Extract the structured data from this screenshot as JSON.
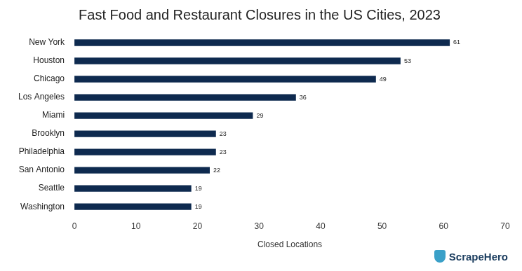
{
  "chart_data": {
    "type": "bar",
    "orientation": "horizontal",
    "title": "Fast Food and Restaurant Closures in the US Cities, 2023",
    "x_label": "Closed Locations",
    "categories": [
      "New York",
      "Houston",
      "Chicago",
      "Los Angeles",
      "Miami",
      "Brooklyn",
      "Philadelphia",
      "San Antonio",
      "Seattle",
      "Washington"
    ],
    "values": [
      61,
      53,
      49,
      36,
      29,
      23,
      23,
      22,
      19,
      19
    ],
    "color": "#0e2a4f",
    "xlim": [
      0,
      70
    ],
    "xticks": [
      0,
      10,
      20,
      30,
      40,
      50,
      60,
      70
    ],
    "grid": false,
    "data_labels": true,
    "annotations": [
      "ScrapeHero"
    ]
  }
}
